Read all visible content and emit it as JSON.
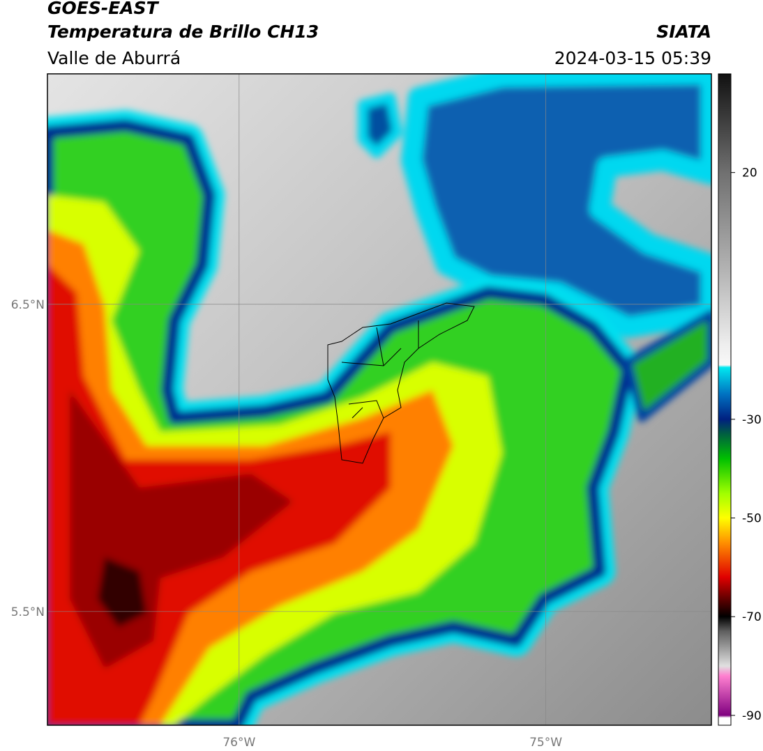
{
  "header": {
    "title": "GOES-EAST",
    "subtitle": "Temperatura de Brillo CH13",
    "region": "Valle de Aburrá",
    "source": "SIATA",
    "timestamp": "2024-03-15 05:39"
  },
  "map": {
    "xlim": [
      -76.625,
      -74.46
    ],
    "ylim": [
      5.13,
      7.25
    ],
    "xticks": [
      {
        "value": -76,
        "label": "76°W"
      },
      {
        "value": -75,
        "label": "75°W"
      }
    ],
    "yticks": [
      {
        "value": 5.5,
        "label": "5.5°N"
      },
      {
        "value": 6.5,
        "label": "6.5°N"
      }
    ],
    "grid": true
  },
  "colorbar": {
    "lim": [
      -92,
      40
    ],
    "ticks": [
      20,
      -30,
      -50,
      -70,
      -90
    ],
    "colormap": [
      {
        "value": 40,
        "color": "#111111"
      },
      {
        "value": 20,
        "color": "#707070"
      },
      {
        "value": 0,
        "color": "#b4b4b4"
      },
      {
        "value": -15,
        "color": "#eeeeee"
      },
      {
        "value": -19,
        "color": "#f8f8f8"
      },
      {
        "value": -19.5,
        "color": "#00e8f0"
      },
      {
        "value": -25,
        "color": "#0070c0"
      },
      {
        "value": -30,
        "color": "#002080"
      },
      {
        "value": -33,
        "color": "#006040"
      },
      {
        "value": -38,
        "color": "#00c000"
      },
      {
        "value": -45,
        "color": "#a0ff00"
      },
      {
        "value": -50,
        "color": "#ffff00"
      },
      {
        "value": -55,
        "color": "#ff9000"
      },
      {
        "value": -62,
        "color": "#e00000"
      },
      {
        "value": -67,
        "color": "#500000"
      },
      {
        "value": -70,
        "color": "#000000"
      },
      {
        "value": -73,
        "color": "#606060"
      },
      {
        "value": -80,
        "color": "#e0e0e0"
      },
      {
        "value": -82,
        "color": "#ff80d0"
      },
      {
        "value": -90,
        "color": "#800080"
      },
      {
        "value": -90.5,
        "color": "#ffffff"
      },
      {
        "value": -92,
        "color": "#ffffff"
      }
    ]
  }
}
